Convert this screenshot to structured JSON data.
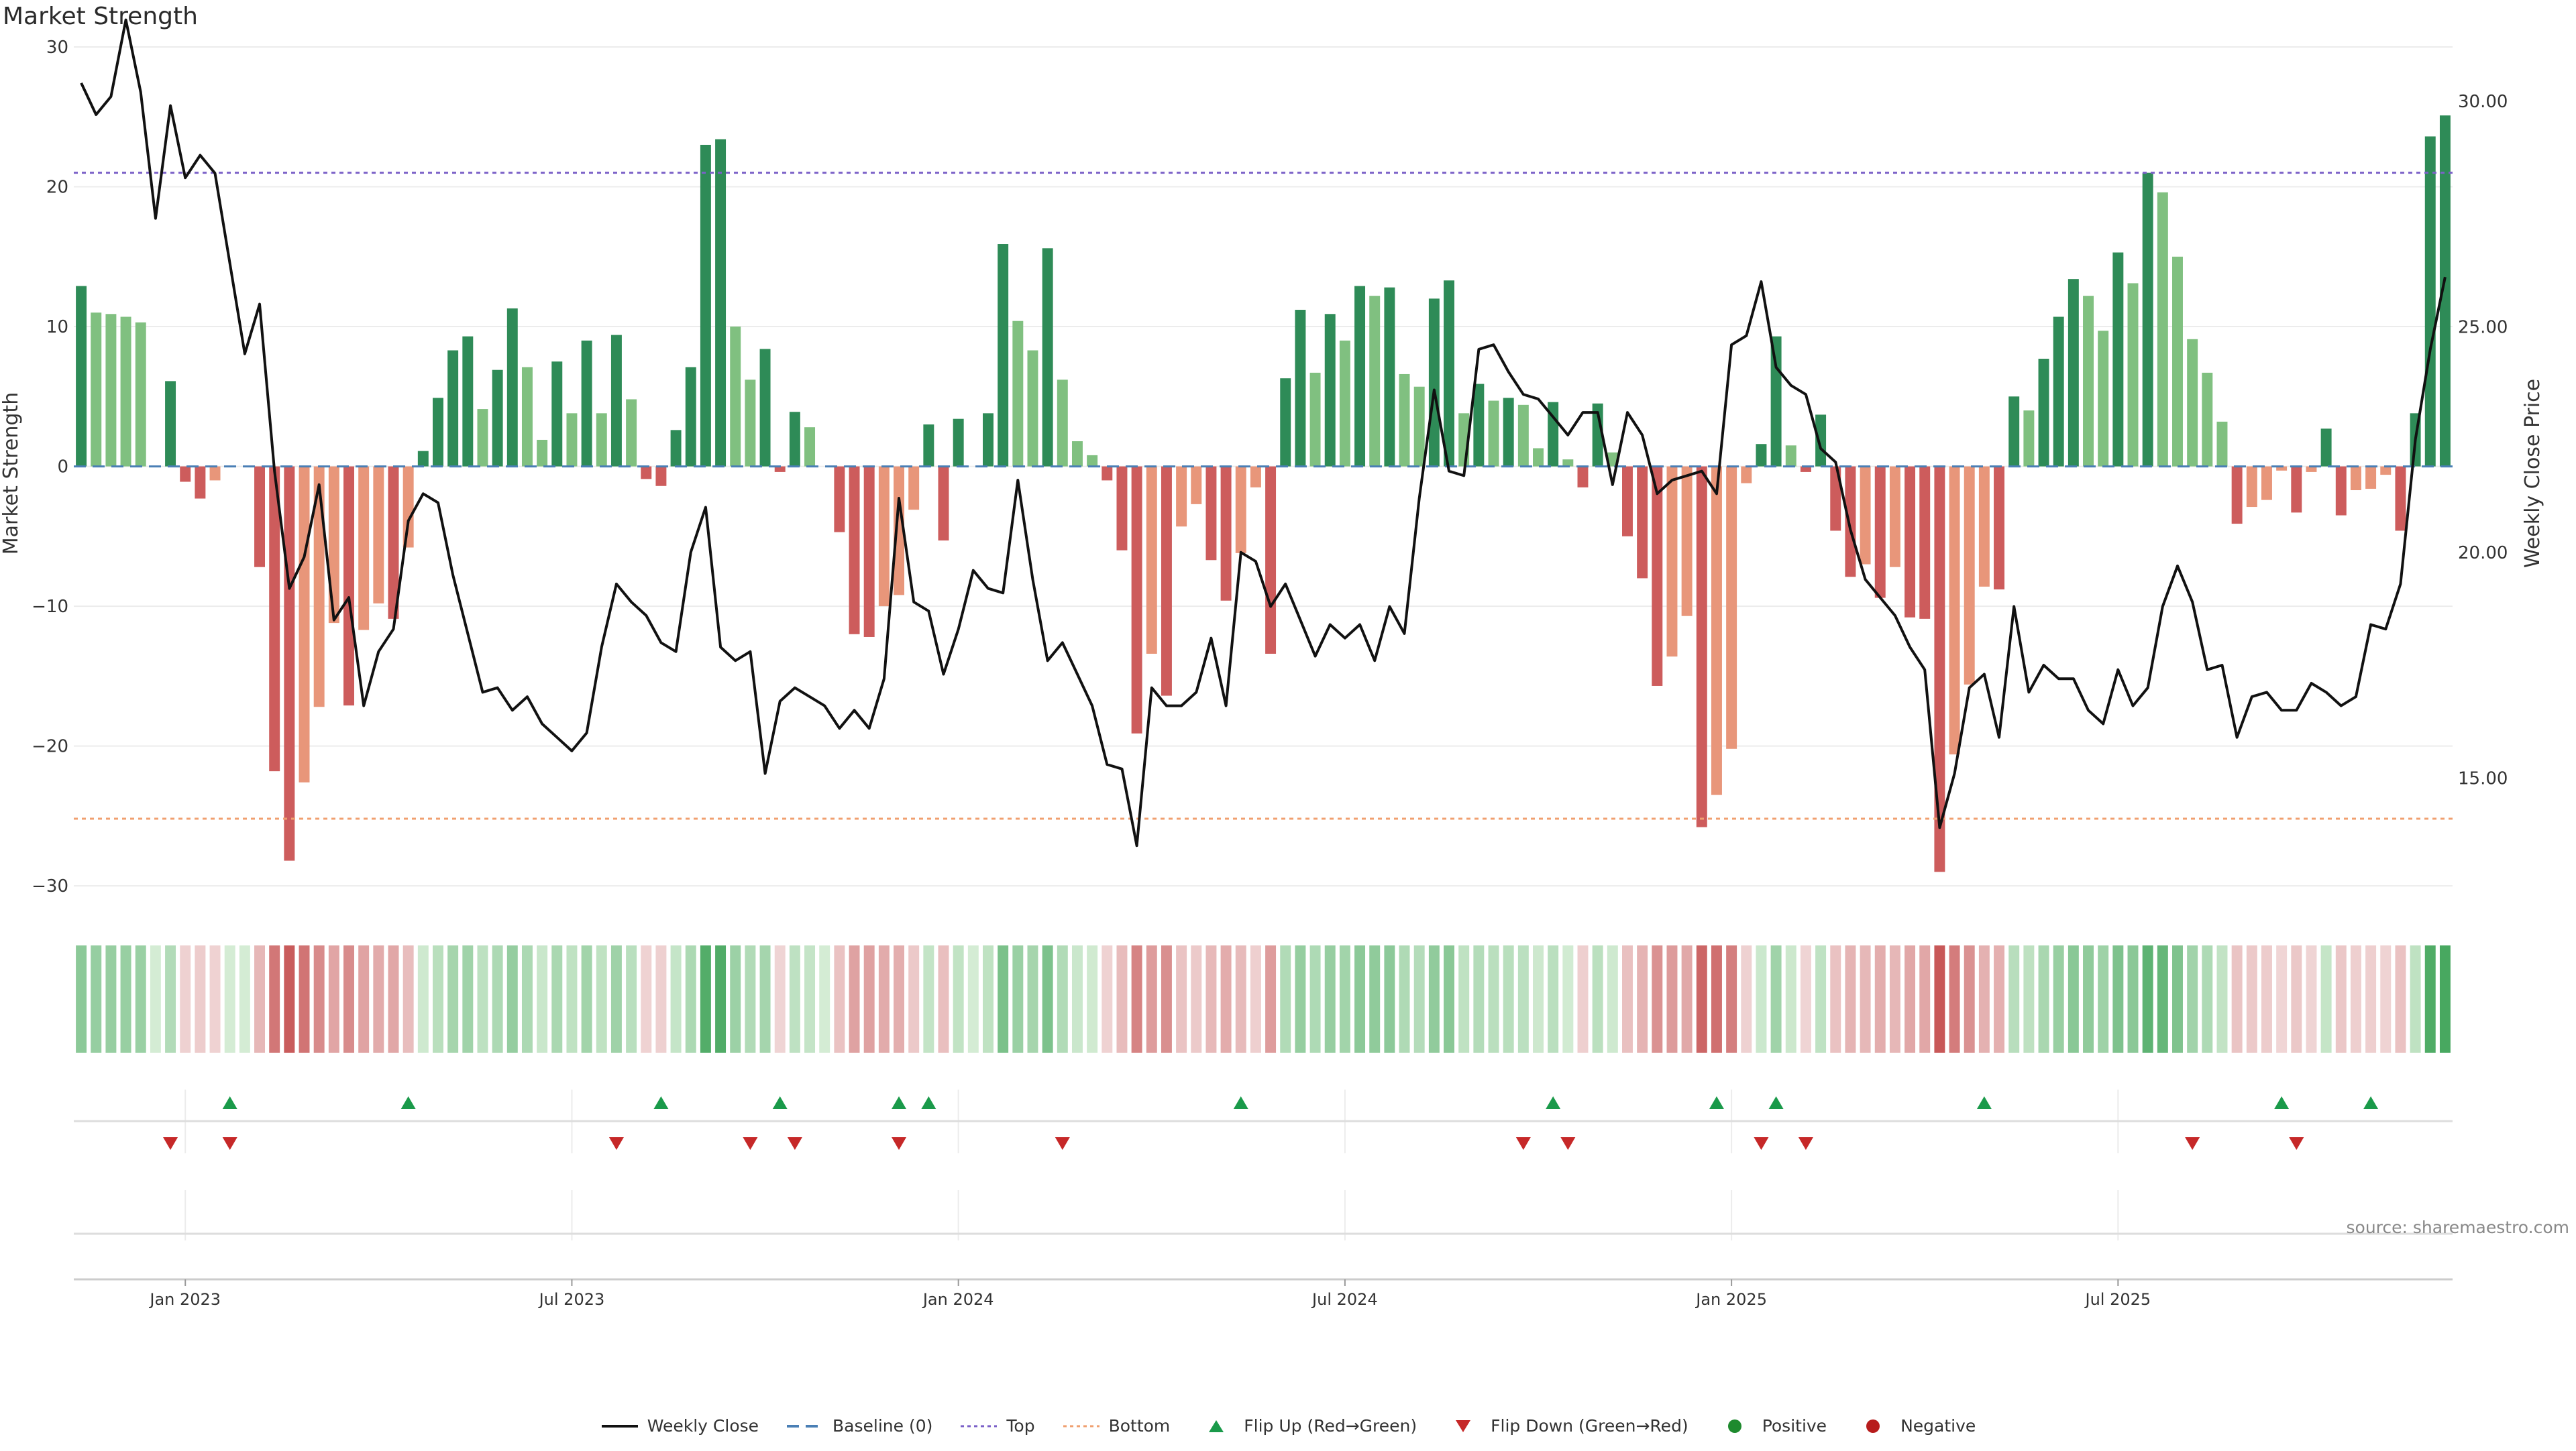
{
  "chart_data": {
    "type": "bar+line",
    "title": "Market Strength",
    "ylabel_left": "Market Strength",
    "ylabel_right": "Weekly Close Price",
    "source": "source: sharemaestro.com",
    "ylim_left": [
      -31,
      30
    ],
    "ylim_right": [
      12.3,
      31.2
    ],
    "yticks_left": [
      {
        "v": 30,
        "label": "30"
      },
      {
        "v": 20,
        "label": "20"
      },
      {
        "v": 10,
        "label": "10"
      },
      {
        "v": 0,
        "label": "0"
      },
      {
        "v": -10,
        "label": "−10"
      },
      {
        "v": -20,
        "label": "−20"
      },
      {
        "v": -30,
        "label": "−30"
      }
    ],
    "yticks_right": [
      {
        "v": 30,
        "label": "30.00"
      },
      {
        "v": 25,
        "label": "25.00"
      },
      {
        "v": 20,
        "label": "20.00"
      },
      {
        "v": 15,
        "label": "15.00"
      }
    ],
    "xticks": [
      {
        "index": 7,
        "label": "Jan 2023"
      },
      {
        "index": 33,
        "label": "Jul 2023"
      },
      {
        "index": 59,
        "label": "Jan 2024"
      },
      {
        "index": 85,
        "label": "Jul 2024"
      },
      {
        "index": 111,
        "label": "Jan 2025"
      },
      {
        "index": 137,
        "label": "Jul 2025"
      }
    ],
    "top_threshold": 21,
    "bottom_threshold": -25.2,
    "strength": [
      12.9,
      11,
      10.9,
      10.7,
      10.3,
      0,
      6.1,
      -1.1,
      -2.3,
      -1,
      0,
      0,
      -7.2,
      -21.8,
      -28.2,
      -22.6,
      -17.2,
      -11.2,
      -17.1,
      -11.7,
      -9.8,
      -10.9,
      -5.8,
      1.1,
      4.9,
      8.3,
      9.3,
      4.1,
      6.9,
      11.3,
      7.1,
      1.9,
      7.5,
      3.8,
      9,
      3.8,
      9.4,
      4.8,
      -0.9,
      -1.4,
      2.6,
      7.1,
      23,
      23.4,
      10,
      6.2,
      8.4,
      -0.4,
      3.9,
      2.8,
      0,
      -4.7,
      -12,
      -12.2,
      -10,
      -9.2,
      -3.1,
      3,
      -5.3,
      3.4,
      0,
      3.8,
      15.9,
      10.4,
      8.3,
      15.6,
      6.2,
      1.8,
      0.8,
      -1,
      -6,
      -19.1,
      -13.4,
      -16.4,
      -4.3,
      -2.7,
      -6.7,
      -9.6,
      -6.2,
      -1.5,
      -13.4,
      6.3,
      11.2,
      6.7,
      10.9,
      9,
      12.9,
      12.2,
      12.8,
      6.6,
      5.7,
      12,
      13.3,
      3.8,
      5.9,
      4.7,
      4.9,
      4.4,
      1.3,
      4.6,
      0.5,
      -1.5,
      4.5,
      1,
      -5,
      -8,
      -15.7,
      -13.6,
      -10.7,
      -25.8,
      -23.5,
      -20.2,
      -1.2,
      1.6,
      9.3,
      1.5,
      -0.4,
      3.7,
      -4.6,
      -7.9,
      -7,
      -9.4,
      -7.2,
      -10.8,
      -10.9,
      -29,
      -20.6,
      -15.6,
      -8.6,
      -8.8,
      5,
      4,
      7.7,
      10.7,
      13.4,
      12.2,
      9.7,
      15.3,
      13.1,
      21,
      19.6,
      15,
      9.1,
      6.7,
      3.2,
      -4.1,
      -2.9,
      -2.4,
      -0.3,
      -3.3,
      -0.4,
      2.7,
      -3.5,
      -1.7,
      -1.6,
      -0.6,
      -4.6,
      3.8,
      23.6,
      25.1
    ],
    "close": [
      30.4,
      29.7,
      30.1,
      31.8,
      30.2,
      27.4,
      29.9,
      28.3,
      28.8,
      28.4,
      26.4,
      24.4,
      25.5,
      21.8,
      19.2,
      19.9,
      21.5,
      18.5,
      19,
      16.6,
      17.8,
      18.3,
      20.7,
      21.3,
      21.1,
      19.5,
      18.2,
      16.9,
      17,
      16.5,
      16.8,
      16.2,
      15.9,
      15.6,
      16,
      17.9,
      19.3,
      18.9,
      18.6,
      18,
      17.8,
      20,
      21,
      17.9,
      17.6,
      17.8,
      15.1,
      16.7,
      17,
      16.8,
      16.6,
      16.1,
      16.5,
      16.1,
      17.2,
      21.2,
      18.9,
      18.7,
      17.3,
      18.3,
      19.6,
      19.2,
      19.1,
      21.6,
      19.4,
      17.6,
      18,
      17.3,
      16.6,
      15.3,
      15.2,
      13.5,
      17,
      16.6,
      16.6,
      16.9,
      18.1,
      16.6,
      20,
      19.8,
      18.8,
      19.3,
      18.5,
      17.7,
      18.4,
      18.1,
      18.4,
      17.6,
      18.8,
      18.2,
      21.2,
      23.6,
      21.8,
      21.7,
      24.5,
      24.6,
      24,
      23.5,
      23.4,
      23,
      22.6,
      23.1,
      23.1,
      21.5,
      23.1,
      22.6,
      21.3,
      21.6,
      21.7,
      21.8,
      21.3,
      24.6,
      24.8,
      26,
      24.1,
      23.7,
      23.5,
      22.3,
      22,
      20.5,
      19.4,
      19,
      18.6,
      17.9,
      17.4,
      13.9,
      15.1,
      17,
      17.3,
      15.9,
      18.8,
      16.9,
      17.5,
      17.2,
      17.2,
      16.5,
      16.2,
      17.4,
      16.6,
      17,
      18.8,
      19.7,
      18.9,
      17.4,
      17.5,
      15.9,
      16.8,
      16.9,
      16.5,
      16.5,
      17.1,
      16.9,
      16.6,
      16.8,
      18.4,
      18.3,
      19.3,
      22.5,
      24.5,
      26.1
    ],
    "flip_up": [
      10,
      22,
      39,
      47,
      55,
      57,
      78,
      99,
      110,
      114,
      128,
      148,
      154
    ],
    "flip_down": [
      6,
      10,
      36,
      45,
      48,
      55,
      66,
      97,
      100,
      113,
      116,
      142,
      149
    ],
    "legend": [
      {
        "label": "Weekly Close",
        "kind": "line",
        "color": "#111111"
      },
      {
        "label": "Baseline (0)",
        "kind": "dash",
        "color": "#4a7fb5"
      },
      {
        "label": "Top",
        "kind": "dot",
        "color": "#7b61c8"
      },
      {
        "label": "Bottom",
        "kind": "dot",
        "color": "#f0a070"
      },
      {
        "label": "Flip Up (Red→Green)",
        "kind": "tri-up",
        "color": "#1a9a4a"
      },
      {
        "label": "Flip Down (Green→Red)",
        "kind": "tri-down",
        "color": "#c62828"
      },
      {
        "label": "Positive",
        "kind": "circle",
        "color": "#1e8a2e"
      },
      {
        "label": "Negative",
        "kind": "circle",
        "color": "#b71c1c"
      }
    ]
  }
}
